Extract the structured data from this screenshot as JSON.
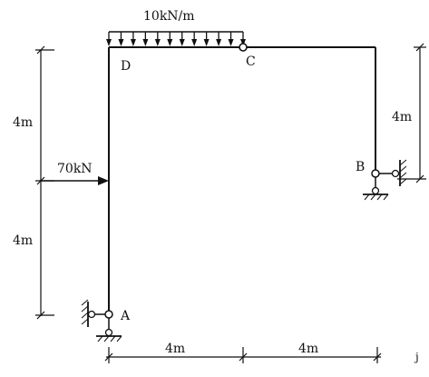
{
  "diagram": {
    "distributed_load": "10kN/m",
    "point_load": "70kN",
    "nodes": {
      "A": "A",
      "B": "B",
      "C": "C",
      "D": "D"
    },
    "dims": {
      "left_upper": "4m",
      "left_lower": "4m",
      "right_height": "4m",
      "bottom_left": "4m",
      "bottom_right": "4m"
    },
    "corner_mark": "j"
  }
}
